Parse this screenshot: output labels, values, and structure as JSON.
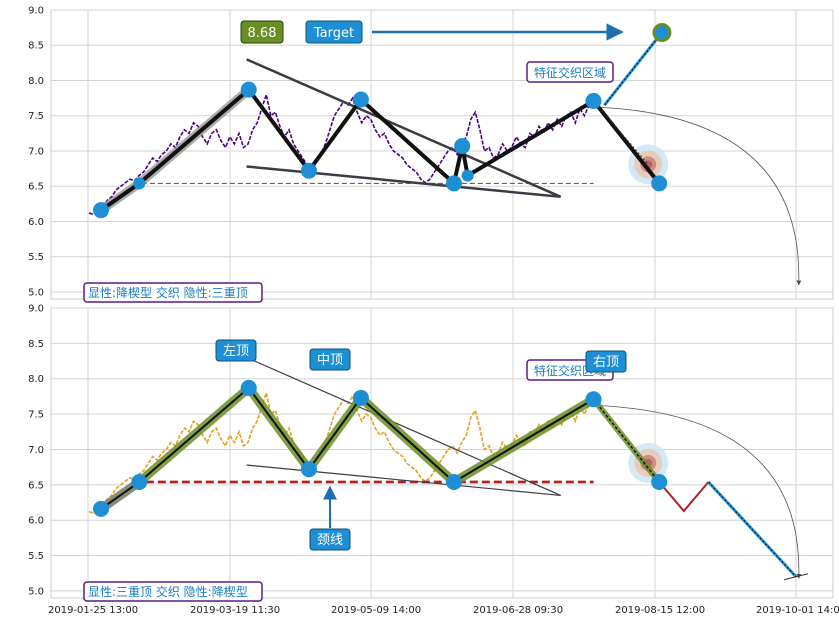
{
  "chart_data": [
    {
      "type": "line",
      "panel": "top",
      "ylim": [
        4.9,
        9.0
      ],
      "y_ticks": [
        "5.0",
        "5.5",
        "6.0",
        "6.5",
        "7.0",
        "7.5",
        "8.0",
        "8.5",
        "9.0"
      ],
      "grid": true,
      "series": [
        {
          "style": "purple-dashed-price",
          "color": "#4b0082",
          "values": [
            6.12,
            6.1,
            6.15,
            6.2,
            6.3,
            6.35,
            6.45,
            6.5,
            6.55,
            6.6,
            6.58,
            6.65,
            6.7,
            6.8,
            6.9,
            6.85,
            6.95,
            7.0,
            7.1,
            7.05,
            7.2,
            7.3,
            7.25,
            7.4,
            7.35,
            7.2,
            7.1,
            7.25,
            7.3,
            7.15,
            7.05,
            7.2,
            7.1,
            7.25,
            7.05,
            7.1,
            7.3,
            7.4,
            7.6,
            7.8,
            7.5,
            7.55,
            7.35,
            7.2,
            7.3,
            7.1,
            7.0,
            6.9,
            6.8,
            6.75,
            6.85,
            6.95,
            7.1,
            7.3,
            7.5,
            7.6,
            7.7,
            7.65,
            7.75,
            7.55,
            7.4,
            7.5,
            7.45,
            7.3,
            7.2,
            7.25,
            7.1,
            7.0,
            6.95,
            6.9,
            6.8,
            6.75,
            6.7,
            6.6,
            6.55,
            6.6,
            6.7,
            6.8,
            6.9,
            7.0,
            7.05,
            6.95,
            7.1,
            7.2,
            7.45,
            7.55,
            7.3,
            7.0,
            7.05,
            6.9,
            6.95,
            7.1,
            7.0,
            7.05,
            7.2,
            7.1,
            7.05,
            7.25,
            7.2,
            7.35,
            7.25,
            7.4,
            7.3,
            7.45,
            7.35,
            7.5,
            7.55,
            7.4,
            7.6,
            7.5,
            7.65,
            7.7
          ]
        }
      ],
      "pattern_points": [
        {
          "x": 0.0,
          "y": 6.16
        },
        {
          "x": 7.0,
          "y": 6.54
        },
        {
          "x": 27.0,
          "y": 7.87
        },
        {
          "x": 38.0,
          "y": 6.72
        },
        {
          "x": 47.5,
          "y": 7.73
        },
        {
          "x": 64.5,
          "y": 6.54
        },
        {
          "x": 66.0,
          "y": 7.07
        },
        {
          "x": 67.0,
          "y": 6.65
        },
        {
          "x": 90.0,
          "y": 7.71
        },
        {
          "x": 102.0,
          "y": 6.54
        }
      ],
      "target_value": 8.68,
      "neckline": 6.54,
      "annotations": {
        "value_label": "8.68",
        "target_label": "Target",
        "zone_label": "特征交织区域",
        "status": "显性:降楔型 交织 隐性:三重顶"
      }
    },
    {
      "type": "line",
      "panel": "bottom",
      "ylim": [
        4.9,
        9.0
      ],
      "y_ticks": [
        "5.0",
        "5.5",
        "6.0",
        "6.5",
        "7.0",
        "7.5",
        "8.0",
        "8.5",
        "9.0"
      ],
      "grid": true,
      "x_tick_labels": [
        "2019-01-25 13:00",
        "2019-03-19 11:30",
        "2019-05-09 14:00",
        "2019-06-28 09:30",
        "2019-08-15 12:00",
        "2019-10-01 14:00"
      ],
      "series": [
        {
          "style": "orange-dashed-price",
          "color": "#e8a020",
          "values": [
            6.12,
            6.1,
            6.15,
            6.2,
            6.3,
            6.35,
            6.45,
            6.5,
            6.55,
            6.6,
            6.58,
            6.65,
            6.7,
            6.8,
            6.9,
            6.85,
            6.95,
            7.0,
            7.1,
            7.05,
            7.2,
            7.3,
            7.25,
            7.4,
            7.35,
            7.2,
            7.1,
            7.25,
            7.3,
            7.15,
            7.05,
            7.2,
            7.1,
            7.25,
            7.05,
            7.1,
            7.3,
            7.4,
            7.6,
            7.8,
            7.5,
            7.55,
            7.35,
            7.2,
            7.3,
            7.1,
            7.0,
            6.9,
            6.8,
            6.75,
            6.85,
            6.95,
            7.1,
            7.3,
            7.5,
            7.6,
            7.7,
            7.65,
            7.75,
            7.55,
            7.4,
            7.5,
            7.45,
            7.3,
            7.2,
            7.25,
            7.1,
            7.0,
            6.95,
            6.9,
            6.8,
            6.75,
            6.7,
            6.6,
            6.55,
            6.6,
            6.7,
            6.8,
            6.9,
            7.0,
            7.05,
            6.95,
            7.1,
            7.2,
            7.45,
            7.55,
            7.3,
            7.0,
            7.05,
            6.9,
            6.95,
            7.1,
            7.0,
            7.05,
            7.2,
            7.1,
            7.05,
            7.25,
            7.2,
            7.35,
            7.25,
            7.4,
            7.3,
            7.45,
            7.35,
            7.5,
            7.55,
            7.4,
            7.6,
            7.5,
            7.65,
            7.7
          ]
        }
      ],
      "pattern_points": [
        {
          "x": 0.0,
          "y": 6.16
        },
        {
          "x": 7.0,
          "y": 6.54
        },
        {
          "x": 27.0,
          "y": 7.87
        },
        {
          "x": 38.0,
          "y": 6.72
        },
        {
          "x": 47.5,
          "y": 7.73
        },
        {
          "x": 64.5,
          "y": 6.54
        },
        {
          "x": 90.0,
          "y": 7.71
        },
        {
          "x": 102.0,
          "y": 6.54
        }
      ],
      "projection_points": [
        {
          "x": 90.0,
          "y": 7.71
        },
        {
          "x": 102.0,
          "y": 6.54
        },
        {
          "x": 106.5,
          "y": 6.13
        },
        {
          "x": 111.0,
          "y": 6.54
        },
        {
          "x": 127.0,
          "y": 5.2
        }
      ],
      "neckline": 6.54,
      "annotations": {
        "left_top": "左顶",
        "middle_top": "中顶",
        "right_top": "右顶",
        "neckline_label": "颈线",
        "zone_label": "特征交织区域",
        "status": "显性:三重顶 交织 隐性:降楔型"
      }
    }
  ],
  "colors": {
    "grid": "#d3d3d3",
    "node_fill": "#1e8fd5",
    "label_box": "#1e8fd5",
    "status_border": "#5a1a8a",
    "status_text": "#1a7dbf",
    "neckline_top": "#b22222",
    "neckline_bottom": "#b22222",
    "pattern_band_bottom": "#6b8e23",
    "value_label_bg": "#6b8e23"
  }
}
